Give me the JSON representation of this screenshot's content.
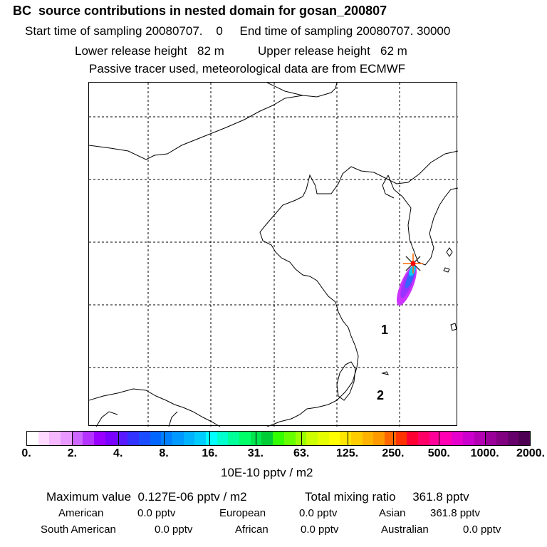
{
  "header": {
    "title": "BC  source contributions in nested domain for gosan_200807",
    "start_label": "Start time of sampling",
    "start_value": "20080707.    0",
    "end_label": "End time of sampling",
    "end_value": "20080707. 30000",
    "lower_label": "Lower release height",
    "lower_value": "82 m",
    "upper_label": "Upper release height",
    "upper_value": "62 m",
    "note": "Passive tracer used, meteorological data are from ECMWF"
  },
  "map": {
    "region_labels": [
      "1",
      "2"
    ],
    "receptor_marker": "receptor-star-icon",
    "plume_colors": [
      "#cc33ff",
      "#9933ff",
      "#6633ff",
      "#3366ff",
      "#0099ff",
      "#00ccff"
    ]
  },
  "colorbar": {
    "colors": [
      "#ffffff",
      "#ffd9ff",
      "#f5b8ff",
      "#e899ff",
      "#cc66ff",
      "#b533ff",
      "#9900ff",
      "#7a00ff",
      "#5a1aff",
      "#3333ff",
      "#1a4dff",
      "#0066ff",
      "#0080ff",
      "#0099ff",
      "#00b3ff",
      "#00ccff",
      "#00ffff",
      "#00ffcc",
      "#00ff99",
      "#00ff66",
      "#00e64d",
      "#00cc33",
      "#33ff00",
      "#66ff00",
      "#99ff00",
      "#ccff00",
      "#e6ff00",
      "#ffff00",
      "#ffe600",
      "#ffcc00",
      "#ffb300",
      "#ff9900",
      "#ff6600",
      "#ff3300",
      "#ff0033",
      "#ff0066",
      "#ff0099",
      "#ff00b3",
      "#e600cc",
      "#cc00cc",
      "#b300b3",
      "#990099",
      "#800080",
      "#66006b",
      "#4d0052"
    ],
    "tick_labels": [
      "0.",
      "2.",
      "4.",
      "8.",
      "16.",
      "31.",
      "63.",
      "125.",
      "250.",
      "500.",
      "1000.",
      "2000."
    ],
    "unit": "10E-10 pptv / m2"
  },
  "summary": {
    "max_label": "Maximum value",
    "max_value": "0.127E-06 pptv / m2",
    "total_label": "Total mixing ratio",
    "total_value": "361.8 pptv",
    "regions": [
      {
        "name": "American",
        "value": "0.0 pptv"
      },
      {
        "name": "European",
        "value": "0.0 pptv"
      },
      {
        "name": "Asian",
        "value": "361.8 pptv"
      },
      {
        "name": "South American",
        "value": "0.0 pptv"
      },
      {
        "name": "African",
        "value": "0.0 pptv"
      },
      {
        "name": "Australian",
        "value": "0.0 pptv"
      }
    ]
  }
}
